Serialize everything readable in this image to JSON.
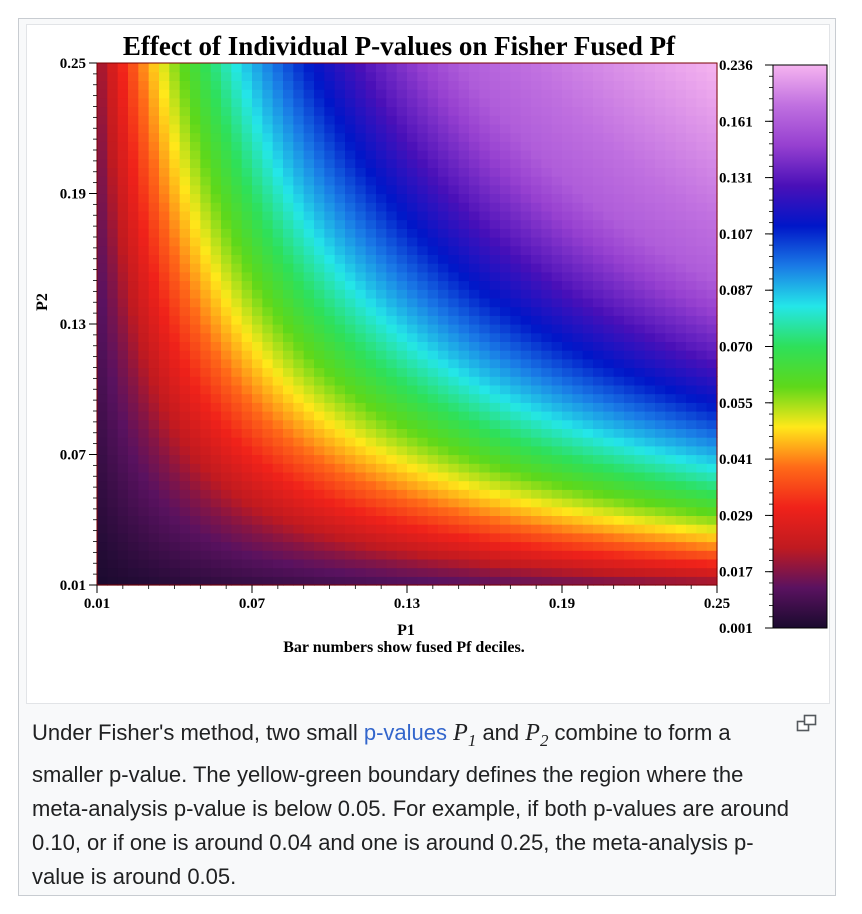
{
  "chart_data": {
    "type": "heatmap",
    "title": "Effect of Individual P-values on Fisher Fused Pf",
    "xlabel": "P1",
    "ylabel": "P2",
    "note": "Bar numbers show fused Pf deciles.",
    "x_ticks": [
      "0.01",
      "0.07",
      "0.13",
      "0.19",
      "0.25"
    ],
    "y_ticks": [
      "0.01",
      "0.07",
      "0.13",
      "0.19",
      "0.25"
    ],
    "xlim": [
      0.01,
      0.25
    ],
    "ylim": [
      0.01,
      0.25
    ],
    "colorbar_labels": [
      "0.001",
      "0.017",
      "0.029",
      "0.041",
      "0.055",
      "0.070",
      "0.087",
      "0.107",
      "0.131",
      "0.161",
      "0.236"
    ],
    "colormap": [
      "#1a0a2e",
      "#5a1260",
      "#c01a20",
      "#f0221a",
      "#ff6a18",
      "#ffe81a",
      "#5ed81a",
      "#2ee05a",
      "#24e6e8",
      "#1a7ae6",
      "#0016c8",
      "#4a10b8",
      "#9640d0",
      "#c070e0",
      "#f6b4f0"
    ]
  },
  "caption": {
    "text_before": "Under Fisher's method, two small ",
    "link": "p-values",
    "p1_base": "P",
    "p1_sub": "1",
    "mid": " and ",
    "p2_base": "P",
    "p2_sub": "2",
    "text_after": " combine to form a smaller p-value. The yellow-green boundary defines the region where the meta-analysis p-value is below 0.05. For example, if both p-values are around 0.10, or if one is around 0.04 and one is around 0.25, the meta-analysis p-value is around 0.05."
  },
  "icons": {
    "enlarge": "enlarge-icon"
  }
}
